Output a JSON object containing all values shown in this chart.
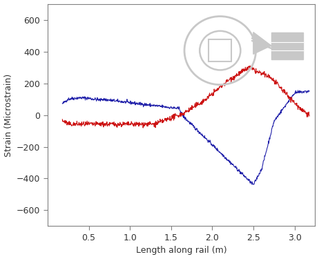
{
  "title": "",
  "xlabel": "Length along rail (m)",
  "ylabel": "Strain (Microstrain)",
  "xlim": [
    0,
    3.25
  ],
  "ylim": [
    -700,
    700
  ],
  "yticks": [
    -600,
    -400,
    -200,
    0,
    200,
    400,
    600
  ],
  "xticks": [
    0.5,
    1,
    1.5,
    2,
    2.5,
    3
  ],
  "blue_color": "#2222aa",
  "red_color": "#cc1111",
  "background_color": "#ffffff",
  "figsize": [
    4.62,
    3.75
  ],
  "dpi": 100,
  "logo_color": "#c8c8c8",
  "axis_color": "#808080"
}
